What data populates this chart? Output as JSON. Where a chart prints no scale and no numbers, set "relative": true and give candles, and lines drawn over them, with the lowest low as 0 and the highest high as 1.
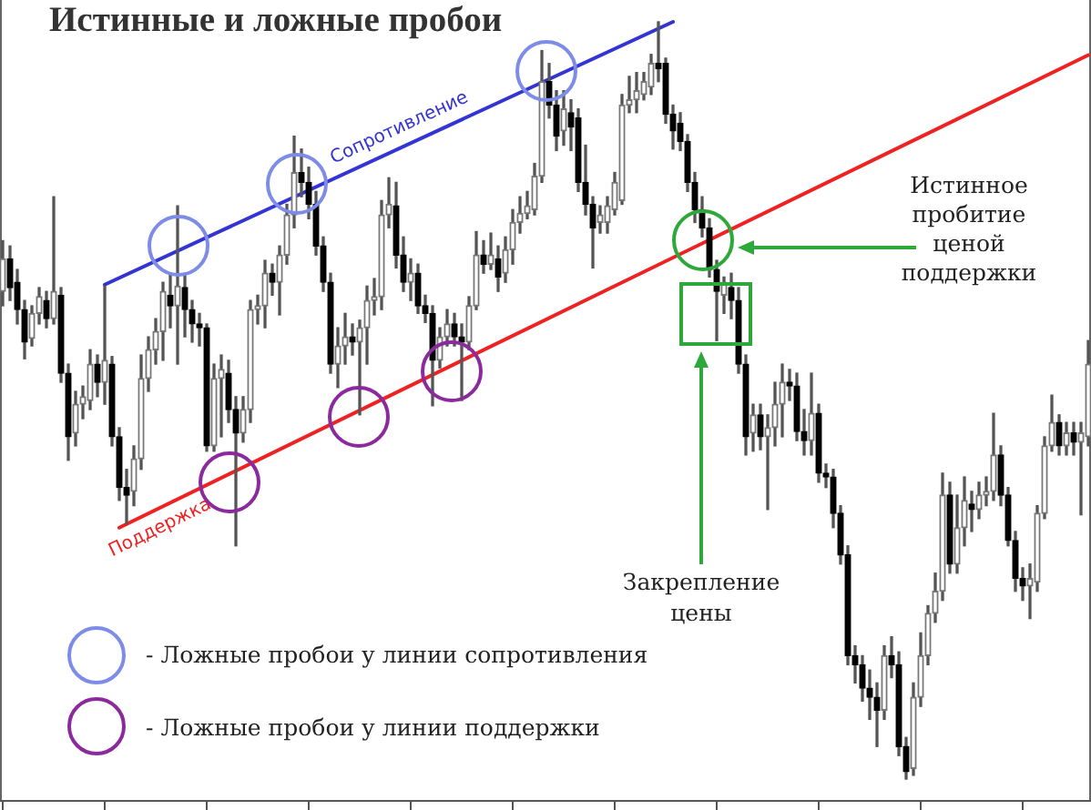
{
  "chart_data": {
    "type": "candlestick",
    "title": "Истинные и ложные пробои",
    "relative": true,
    "categories": [
      null,
      null,
      null,
      null,
      null,
      null,
      null,
      null,
      null,
      null,
      null,
      null,
      null,
      null,
      null,
      null,
      null,
      null,
      null,
      null,
      null,
      null,
      null,
      null,
      null,
      null,
      null,
      null,
      null,
      null,
      null,
      null,
      null,
      null,
      null,
      null,
      null,
      null,
      null,
      null,
      null,
      null,
      null,
      null,
      null,
      null,
      null,
      null,
      null,
      null,
      null,
      null,
      null,
      null,
      null,
      null,
      null,
      null,
      null,
      null,
      null,
      null,
      null,
      null,
      null,
      null,
      null,
      null,
      null,
      null,
      null,
      null,
      null,
      null,
      null,
      null,
      null,
      null,
      null,
      null,
      null,
      null,
      null,
      null,
      null,
      null,
      null,
      null,
      null,
      null,
      null,
      null,
      null,
      null,
      null,
      null,
      null,
      null,
      null,
      null,
      null,
      null,
      null,
      null,
      null,
      null,
      null,
      null,
      null,
      null,
      null,
      null,
      null,
      null,
      null,
      null,
      null,
      null,
      null,
      null,
      null,
      null,
      null,
      null,
      null,
      null,
      null,
      null,
      null,
      null,
      null,
      null,
      null,
      null,
      null,
      null,
      null,
      null,
      null,
      null,
      null,
      null,
      null,
      null,
      null,
      null,
      null,
      null,
      null,
      null
    ],
    "ohlc": [
      [
        0.644,
        0.711,
        0.625,
        0.687
      ],
      [
        0.687,
        0.704,
        0.632,
        0.649
      ],
      [
        0.656,
        0.673,
        0.601,
        0.62
      ],
      [
        0.62,
        0.632,
        0.555,
        0.577
      ],
      [
        0.582,
        0.625,
        0.572,
        0.615
      ],
      [
        0.615,
        0.649,
        0.601,
        0.637
      ],
      [
        0.632,
        0.644,
        0.596,
        0.608
      ],
      [
        0.608,
        0.769,
        0.601,
        0.644
      ],
      [
        0.639,
        0.649,
        0.524,
        0.536
      ],
      [
        0.536,
        0.548,
        0.421,
        0.452
      ],
      [
        0.457,
        0.512,
        0.44,
        0.495
      ],
      [
        0.495,
        0.519,
        0.476,
        0.505
      ],
      [
        0.5,
        0.567,
        0.488,
        0.548
      ],
      [
        0.548,
        0.56,
        0.505,
        0.524
      ],
      [
        0.524,
        0.651,
        0.495,
        0.553
      ],
      [
        0.548,
        0.558,
        0.44,
        0.452
      ],
      [
        0.452,
        0.464,
        0.368,
        0.385
      ],
      [
        0.385,
        0.409,
        0.337,
        0.375
      ],
      [
        0.38,
        0.44,
        0.361,
        0.423
      ],
      [
        0.423,
        0.56,
        0.409,
        0.529
      ],
      [
        0.529,
        0.584,
        0.512,
        0.567
      ],
      [
        0.567,
        0.608,
        0.548,
        0.591
      ],
      [
        0.591,
        0.656,
        0.553,
        0.644
      ],
      [
        0.639,
        0.668,
        0.596,
        0.625
      ],
      [
        0.625,
        0.757,
        0.548,
        0.651
      ],
      [
        0.649,
        0.668,
        0.584,
        0.62
      ],
      [
        0.62,
        0.632,
        0.577,
        0.601
      ],
      [
        0.601,
        0.615,
        0.572,
        0.596
      ],
      [
        0.596,
        0.601,
        0.433,
        0.44
      ],
      [
        0.44,
        0.548,
        0.433,
        0.529
      ],
      [
        0.529,
        0.56,
        0.452,
        0.541
      ],
      [
        0.536,
        0.553,
        0.471,
        0.488
      ],
      [
        0.488,
        0.505,
        0.308,
        0.457
      ],
      [
        0.457,
        0.505,
        0.445,
        0.488
      ],
      [
        0.488,
        0.632,
        0.471,
        0.62
      ],
      [
        0.62,
        0.639,
        0.601,
        0.625
      ],
      [
        0.625,
        0.685,
        0.596,
        0.668
      ],
      [
        0.668,
        0.68,
        0.639,
        0.656
      ],
      [
        0.656,
        0.704,
        0.613,
        0.692
      ],
      [
        0.692,
        0.759,
        0.68,
        0.745
      ],
      [
        0.745,
        0.849,
        0.728,
        0.801
      ],
      [
        0.801,
        0.832,
        0.769,
        0.788
      ],
      [
        0.788,
        0.808,
        0.74,
        0.759
      ],
      [
        0.759,
        0.776,
        0.692,
        0.704
      ],
      [
        0.704,
        0.716,
        0.644,
        0.656
      ],
      [
        0.656,
        0.668,
        0.536,
        0.548
      ],
      [
        0.548,
        0.596,
        0.517,
        0.572
      ],
      [
        0.572,
        0.615,
        0.548,
        0.584
      ],
      [
        0.584,
        0.601,
        0.56,
        0.577
      ],
      [
        0.577,
        0.606,
        0.481,
        0.596
      ],
      [
        0.596,
        0.651,
        0.548,
        0.632
      ],
      [
        0.632,
        0.661,
        0.613,
        0.637
      ],
      [
        0.637,
        0.764,
        0.62,
        0.745
      ],
      [
        0.745,
        0.794,
        0.728,
        0.759
      ],
      [
        0.757,
        0.788,
        0.675,
        0.692
      ],
      [
        0.692,
        0.716,
        0.644,
        0.656
      ],
      [
        0.656,
        0.687,
        0.632,
        0.668
      ],
      [
        0.668,
        0.68,
        0.615,
        0.625
      ],
      [
        0.625,
        0.639,
        0.603,
        0.615
      ],
      [
        0.615,
        0.625,
        0.493,
        0.553
      ],
      [
        0.553,
        0.596,
        0.543,
        0.584
      ],
      [
        0.584,
        0.62,
        0.572,
        0.601
      ],
      [
        0.601,
        0.615,
        0.572,
        0.584
      ],
      [
        0.584,
        0.601,
        0.5,
        0.577
      ],
      [
        0.577,
        0.637,
        0.567,
        0.625
      ],
      [
        0.625,
        0.723,
        0.62,
        0.692
      ],
      [
        0.692,
        0.711,
        0.668,
        0.68
      ],
      [
        0.68,
        0.721,
        0.673,
        0.692
      ],
      [
        0.687,
        0.704,
        0.644,
        0.663
      ],
      [
        0.668,
        0.716,
        0.656,
        0.699
      ],
      [
        0.699,
        0.752,
        0.68,
        0.735
      ],
      [
        0.735,
        0.769,
        0.721,
        0.747
      ],
      [
        0.747,
        0.776,
        0.74,
        0.757
      ],
      [
        0.752,
        0.813,
        0.745,
        0.796
      ],
      [
        0.796,
        0.962,
        0.788,
        0.921
      ],
      [
        0.921,
        0.945,
        0.873,
        0.89
      ],
      [
        0.89,
        0.909,
        0.83,
        0.849
      ],
      [
        0.856,
        0.909,
        0.837,
        0.885
      ],
      [
        0.88,
        0.897,
        0.83,
        0.861
      ],
      [
        0.873,
        0.885,
        0.776,
        0.788
      ],
      [
        0.788,
        0.837,
        0.745,
        0.759
      ],
      [
        0.759,
        0.769,
        0.675,
        0.728
      ],
      [
        0.735,
        0.757,
        0.721,
        0.745
      ],
      [
        0.735,
        0.769,
        0.721,
        0.757
      ],
      [
        0.752,
        0.801,
        0.745,
        0.788
      ],
      [
        0.764,
        0.904,
        0.759,
        0.89
      ],
      [
        0.89,
        0.928,
        0.88,
        0.897
      ],
      [
        0.897,
        0.933,
        0.88,
        0.909
      ],
      [
        0.904,
        0.933,
        0.897,
        0.921
      ],
      [
        0.914,
        0.957,
        0.904,
        0.945
      ],
      [
        0.945,
        1.0,
        0.921,
        0.938
      ],
      [
        0.945,
        0.952,
        0.866,
        0.878
      ],
      [
        0.878,
        0.89,
        0.832,
        0.856
      ],
      [
        0.866,
        0.88,
        0.83,
        0.842
      ],
      [
        0.842,
        0.851,
        0.776,
        0.788
      ],
      [
        0.788,
        0.801,
        0.735,
        0.752
      ],
      [
        0.752,
        0.769,
        0.716,
        0.728
      ],
      [
        0.728,
        0.74,
        0.663,
        0.673
      ],
      [
        0.673,
        0.685,
        0.579,
        0.644
      ],
      [
        0.639,
        0.663,
        0.615,
        0.656
      ],
      [
        0.649,
        0.668,
        0.608,
        0.632
      ],
      [
        0.632,
        0.649,
        0.536,
        0.548
      ],
      [
        0.548,
        0.56,
        0.428,
        0.452
      ],
      [
        0.457,
        0.495,
        0.433,
        0.481
      ],
      [
        0.481,
        0.495,
        0.435,
        0.452
      ],
      [
        0.452,
        0.481,
        0.356,
        0.464
      ],
      [
        0.464,
        0.524,
        0.44,
        0.495
      ],
      [
        0.495,
        0.548,
        0.452,
        0.524
      ],
      [
        0.524,
        0.541,
        0.5,
        0.519
      ],
      [
        0.519,
        0.536,
        0.447,
        0.459
      ],
      [
        0.459,
        0.488,
        0.428,
        0.447
      ],
      [
        0.447,
        0.536,
        0.428,
        0.483
      ],
      [
        0.483,
        0.495,
        0.392,
        0.404
      ],
      [
        0.404,
        0.416,
        0.385,
        0.399
      ],
      [
        0.399,
        0.409,
        0.332,
        0.351
      ],
      [
        0.351,
        0.361,
        0.284,
        0.296
      ],
      [
        0.296,
        0.308,
        0.151,
        0.163
      ],
      [
        0.163,
        0.176,
        0.127,
        0.151
      ],
      [
        0.151,
        0.163,
        0.103,
        0.12
      ],
      [
        0.12,
        0.144,
        0.079,
        0.108
      ],
      [
        0.108,
        0.127,
        0.043,
        0.091
      ],
      [
        0.091,
        0.176,
        0.079,
        0.163
      ],
      [
        0.163,
        0.188,
        0.134,
        0.151
      ],
      [
        0.151,
        0.168,
        0.031,
        0.043
      ],
      [
        0.043,
        0.055,
        0.0,
        0.01
      ],
      [
        0.014,
        0.127,
        0.005,
        0.108
      ],
      [
        0.108,
        0.193,
        0.096,
        0.163
      ],
      [
        0.163,
        0.229,
        0.151,
        0.219
      ],
      [
        0.219,
        0.272,
        0.207,
        0.248
      ],
      [
        0.248,
        0.404,
        0.236,
        0.375
      ],
      [
        0.375,
        0.392,
        0.272,
        0.284
      ],
      [
        0.284,
        0.375,
        0.272,
        0.332
      ],
      [
        0.332,
        0.399,
        0.308,
        0.368
      ],
      [
        0.363,
        0.38,
        0.327,
        0.356
      ],
      [
        0.356,
        0.392,
        0.344,
        0.375
      ],
      [
        0.375,
        0.399,
        0.361,
        0.38
      ],
      [
        0.38,
        0.483,
        0.368,
        0.428
      ],
      [
        0.428,
        0.44,
        0.361,
        0.375
      ],
      [
        0.375,
        0.385,
        0.308,
        0.315
      ],
      [
        0.315,
        0.327,
        0.248,
        0.265
      ],
      [
        0.265,
        0.279,
        0.236,
        0.255
      ],
      [
        0.255,
        0.284,
        0.212,
        0.265
      ],
      [
        0.26,
        0.361,
        0.248,
        0.351
      ],
      [
        0.351,
        0.452,
        0.344,
        0.44
      ],
      [
        0.44,
        0.507,
        0.433,
        0.471
      ],
      [
        0.471,
        0.481,
        0.428,
        0.44
      ],
      [
        0.44,
        0.471,
        0.428,
        0.457
      ],
      [
        0.457,
        0.471,
        0.428,
        0.445
      ],
      [
        0.445,
        0.471,
        0.349,
        0.457
      ],
      [
        0.452,
        0.579,
        0.44,
        0.548
      ]
    ],
    "series": [
      {
        "name": "Сопротивление",
        "type": "line",
        "color": "#3434d4",
        "values": [
          null,
          null,
          null,
          null,
          null,
          null,
          null,
          null,
          null,
          null,
          null,
          null,
          null,
          null,
          0.653,
          null,
          null,
          null,
          null,
          null,
          null,
          null,
          null,
          null,
          null,
          null,
          null,
          null,
          null,
          null,
          null,
          null,
          null,
          null,
          null,
          null,
          null,
          null,
          null,
          null,
          null,
          null,
          null,
          null,
          null,
          null,
          null,
          null,
          null,
          null,
          null,
          null,
          null,
          null,
          null,
          null,
          null,
          null,
          null,
          null,
          null,
          null,
          null,
          null,
          null,
          null,
          null,
          null,
          null,
          null,
          null,
          null,
          null,
          null,
          null,
          null,
          null,
          null,
          null,
          null,
          null,
          null,
          null,
          null,
          null,
          null,
          null,
          null,
          null,
          null,
          null,
          null,
          1.0,
          null,
          null,
          null,
          null,
          null,
          null,
          null,
          null,
          null,
          null,
          null,
          null,
          null,
          null,
          null,
          null,
          null,
          null,
          null,
          null,
          null,
          null,
          null,
          null,
          null,
          null,
          null,
          null,
          null,
          null,
          null,
          null,
          null,
          null,
          null,
          null,
          null,
          null,
          null,
          null,
          null,
          null,
          null,
          null,
          null,
          null,
          null,
          null,
          null,
          null,
          null,
          null,
          null,
          null,
          null,
          null,
          null
        ]
      },
      {
        "name": "Поддержка",
        "type": "line",
        "color": "#ee2222",
        "values": [
          null,
          null,
          null,
          null,
          null,
          null,
          null,
          null,
          null,
          null,
          null,
          null,
          null,
          null,
          null,
          null,
          0.332,
          null,
          null,
          null,
          null,
          null,
          null,
          null,
          null,
          null,
          null,
          null,
          null,
          null,
          null,
          null,
          null,
          null,
          null,
          null,
          null,
          null,
          null,
          null,
          null,
          null,
          null,
          null,
          null,
          null,
          null,
          null,
          null,
          null,
          null,
          null,
          null,
          null,
          null,
          null,
          null,
          null,
          null,
          null,
          null,
          null,
          null,
          null,
          null,
          null,
          null,
          null,
          null,
          null,
          null,
          null,
          null,
          null,
          null,
          null,
          null,
          null,
          null,
          null,
          null,
          null,
          null,
          null,
          null,
          null,
          null,
          null,
          null,
          null,
          null,
          null,
          null,
          null,
          null,
          null,
          null,
          null,
          null,
          null,
          null,
          null,
          null,
          null,
          null,
          null,
          null,
          null,
          null,
          null,
          null,
          null,
          null,
          null,
          null,
          null,
          null,
          null,
          null,
          null,
          null,
          null,
          null,
          null,
          null,
          null,
          null,
          null,
          null,
          null,
          null,
          null,
          null,
          null,
          null,
          null,
          null,
          null,
          null,
          null,
          null,
          null,
          null,
          null,
          null,
          null,
          null,
          null,
          null,
          0.956
        ]
      }
    ],
    "annotations": [
      "Истинное пробитие ценой поддержки",
      "Закрепление цены",
      "- Ложные пробои у линии сопротивления",
      "- Ложные пробои у линии поддержки"
    ]
  }
}
